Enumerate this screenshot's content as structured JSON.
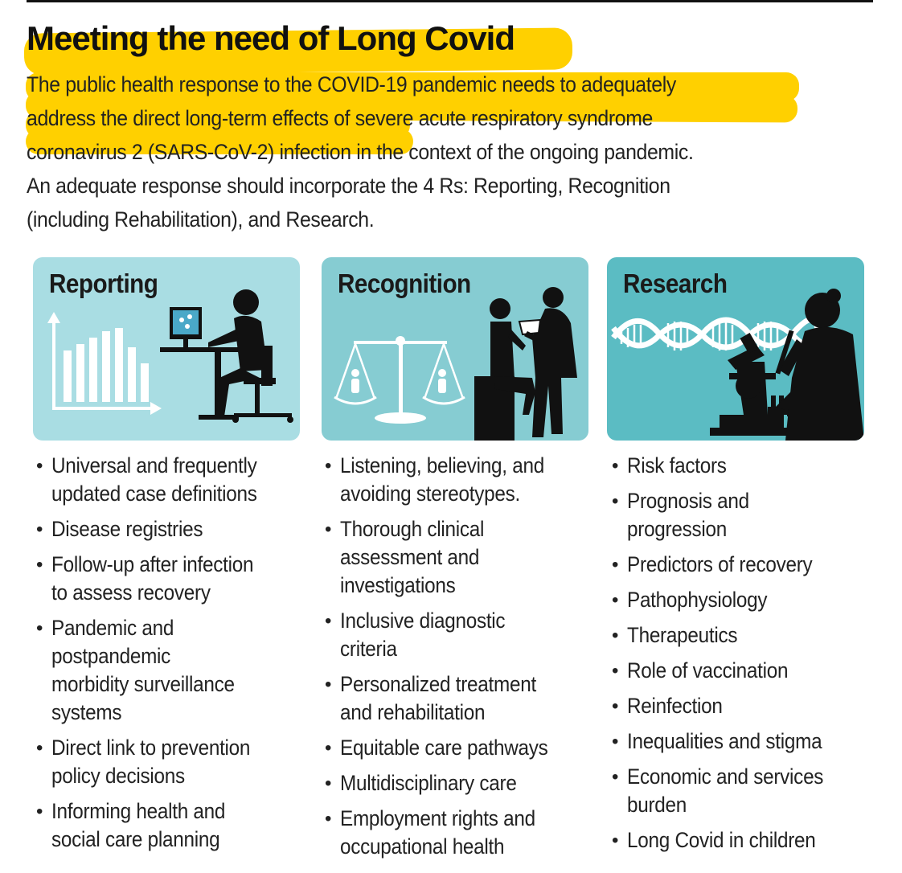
{
  "title": "Meeting the need of Long Covid",
  "intro_lines": [
    "The public health response to the COVID-19 pandemic needs to adequately",
    "address the direct long-term effects of severe acute respiratory syndrome",
    "coronavirus 2 (SARS-CoV-2) infection in the context of the ongoing pandemic.",
    "An adequate response should incorporate  the 4 Rs: Reporting, Recognition",
    "(including Rehabilitation), and Research."
  ],
  "colors": {
    "highlight": "#ffd000",
    "reporting_panel": "#a9dde3",
    "recognition_panel": "#86ccd2",
    "research_panel": "#5bbcc3",
    "silhouette": "#111111"
  },
  "columns": [
    {
      "title": "Reporting",
      "icons": [
        "bar-chart-icon",
        "computer-worker-icon"
      ],
      "items": [
        "Universal and frequently\nupdated case definitions",
        "Disease registries",
        "Follow-up after infection\nto assess recovery",
        "Pandemic and\npostpandemic\nmorbidity surveillance\nsystems",
        "Direct link to prevention\npolicy decisions",
        "Informing health and\nsocial care planning"
      ]
    },
    {
      "title": "Recognition",
      "icons": [
        "scales-icon",
        "doctor-patient-icon"
      ],
      "items": [
        "Listening, believing, and\navoiding stereotypes.",
        "Thorough clinical\nassessment and\ninvestigations",
        "Inclusive diagnostic\ncriteria",
        "Personalized treatment\nand rehabilitation",
        "Equitable care pathways",
        "Multidisciplinary care",
        "Employment rights and\noccupational health"
      ]
    },
    {
      "title": "Research",
      "icons": [
        "dna-icon",
        "microscope-icon",
        "scientist-icon"
      ],
      "items": [
        "Risk factors",
        "Prognosis and\nprogression",
        "Predictors of recovery",
        "Pathophysiology",
        "Therapeutics",
        "Role of vaccination",
        "Reinfection",
        "Inequalities and stigma",
        "Economic and services\nburden",
        "Long Covid in children"
      ]
    }
  ]
}
